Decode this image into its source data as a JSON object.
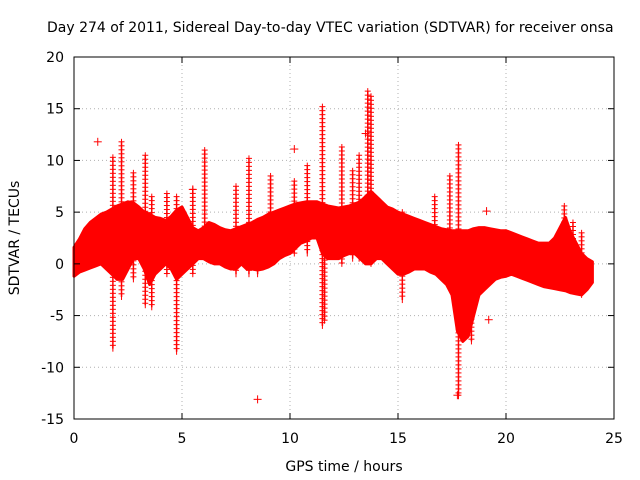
{
  "chart_data": {
    "type": "scatter",
    "title": "Day 274 of 2011, Sidereal Day-to-day VTEC variation (SDTVAR) for receiver onsa",
    "xlabel": "GPS time / hours",
    "ylabel": "SDTVAR / TECUs",
    "xlim": [
      0,
      25
    ],
    "ylim": [
      -15,
      20
    ],
    "xticks": [
      0,
      5,
      10,
      15,
      20,
      25
    ],
    "yticks": [
      -15,
      -10,
      -5,
      0,
      5,
      10,
      15,
      20
    ],
    "xtick_labels": [
      "0",
      "5",
      "10",
      "15",
      "20",
      "25"
    ],
    "ytick_labels": [
      "-15",
      "-10",
      "-5",
      "0",
      "5",
      "10",
      "15",
      "20"
    ],
    "grid": true,
    "marker": "+",
    "color": "#ff0000",
    "series": [
      {
        "name": "SDTVAR",
        "band": [
          [
            0.0,
            -1.2,
            1.6
          ],
          [
            0.25,
            -0.8,
            2.4
          ],
          [
            0.5,
            -0.6,
            3.4
          ],
          [
            0.75,
            -0.4,
            4.0
          ],
          [
            1.0,
            -0.2,
            4.4
          ],
          [
            1.25,
            0.0,
            4.8
          ],
          [
            1.5,
            -0.5,
            5.0
          ],
          [
            1.75,
            -1.0,
            5.3
          ],
          [
            2.0,
            -1.5,
            5.6
          ],
          [
            2.25,
            -1.5,
            5.8
          ],
          [
            2.5,
            -0.5,
            6.0
          ],
          [
            2.75,
            0.5,
            5.9
          ],
          [
            3.0,
            0.5,
            5.5
          ],
          [
            3.25,
            -0.5,
            5.0
          ],
          [
            3.5,
            -2.0,
            4.8
          ],
          [
            3.75,
            -1.0,
            4.5
          ],
          [
            4.0,
            -0.5,
            4.4
          ],
          [
            4.25,
            0.0,
            4.2
          ],
          [
            4.5,
            -0.5,
            4.6
          ],
          [
            4.75,
            -1.5,
            5.2
          ],
          [
            5.0,
            -1.0,
            5.5
          ],
          [
            5.25,
            -0.5,
            4.5
          ],
          [
            5.5,
            0.0,
            3.5
          ],
          [
            5.75,
            0.5,
            3.2
          ],
          [
            6.0,
            0.5,
            3.5
          ],
          [
            6.25,
            0.2,
            4.0
          ],
          [
            6.5,
            0.0,
            3.8
          ],
          [
            6.75,
            0.0,
            3.5
          ],
          [
            7.0,
            -0.3,
            3.3
          ],
          [
            7.25,
            -0.5,
            3.2
          ],
          [
            7.5,
            -0.5,
            3.4
          ],
          [
            7.75,
            0.0,
            3.6
          ],
          [
            8.0,
            -0.5,
            3.8
          ],
          [
            8.25,
            -0.5,
            4.0
          ],
          [
            8.5,
            -0.6,
            4.3
          ],
          [
            8.75,
            -0.5,
            4.5
          ],
          [
            9.0,
            -0.3,
            4.8
          ],
          [
            9.25,
            0.0,
            5.0
          ],
          [
            9.5,
            0.5,
            5.2
          ],
          [
            9.75,
            0.8,
            5.4
          ],
          [
            10.0,
            1.0,
            5.6
          ],
          [
            10.25,
            1.5,
            5.8
          ],
          [
            10.5,
            2.0,
            5.9
          ],
          [
            10.75,
            2.2,
            6.0
          ],
          [
            11.0,
            2.5,
            6.0
          ],
          [
            11.25,
            2.5,
            6.0
          ],
          [
            11.5,
            1.0,
            5.8
          ],
          [
            11.75,
            0.5,
            5.6
          ],
          [
            12.0,
            0.5,
            5.5
          ],
          [
            12.25,
            0.5,
            5.4
          ],
          [
            12.5,
            0.8,
            5.5
          ],
          [
            12.75,
            1.0,
            5.6
          ],
          [
            13.0,
            1.0,
            5.8
          ],
          [
            13.25,
            0.5,
            6.0
          ],
          [
            13.5,
            0.0,
            6.5
          ],
          [
            13.75,
            0.0,
            7.0
          ],
          [
            14.0,
            0.5,
            6.5
          ],
          [
            14.25,
            0.5,
            6.0
          ],
          [
            14.5,
            0.0,
            5.5
          ],
          [
            14.75,
            -0.5,
            5.3
          ],
          [
            15.0,
            -1.0,
            5.0
          ],
          [
            15.25,
            -1.0,
            4.8
          ],
          [
            15.5,
            -0.8,
            4.6
          ],
          [
            15.75,
            -0.5,
            4.4
          ],
          [
            16.0,
            -0.5,
            4.2
          ],
          [
            16.25,
            -0.5,
            4.0
          ],
          [
            16.5,
            -0.8,
            3.8
          ],
          [
            16.75,
            -1.0,
            3.6
          ],
          [
            17.0,
            -1.5,
            3.4
          ],
          [
            17.25,
            -2.0,
            3.3
          ],
          [
            17.5,
            -3.0,
            3.2
          ],
          [
            17.75,
            -6.5,
            3.2
          ],
          [
            18.0,
            -7.5,
            3.2
          ],
          [
            18.25,
            -7.0,
            3.2
          ],
          [
            18.5,
            -5.0,
            3.4
          ],
          [
            18.75,
            -3.0,
            3.5
          ],
          [
            19.0,
            -2.5,
            3.5
          ],
          [
            19.25,
            -2.0,
            3.4
          ],
          [
            19.5,
            -1.5,
            3.3
          ],
          [
            19.75,
            -1.3,
            3.2
          ],
          [
            20.0,
            -1.2,
            3.2
          ],
          [
            20.25,
            -1.0,
            3.0
          ],
          [
            20.5,
            -1.2,
            2.8
          ],
          [
            20.75,
            -1.4,
            2.6
          ],
          [
            21.0,
            -1.6,
            2.4
          ],
          [
            21.25,
            -1.8,
            2.2
          ],
          [
            21.5,
            -2.0,
            2.0
          ],
          [
            21.75,
            -2.2,
            2.0
          ],
          [
            22.0,
            -2.3,
            2.0
          ],
          [
            22.25,
            -2.4,
            2.5
          ],
          [
            22.5,
            -2.5,
            3.5
          ],
          [
            22.75,
            -2.6,
            4.5
          ],
          [
            23.0,
            -2.8,
            3.0
          ],
          [
            23.25,
            -2.9,
            2.0
          ],
          [
            23.5,
            -3.0,
            1.0
          ],
          [
            23.75,
            -2.5,
            0.5
          ],
          [
            24.0,
            -1.8,
            0.2
          ]
        ],
        "spikes": [
          [
            1.8,
            -8.2,
            10.3
          ],
          [
            2.2,
            -3.2,
            11.8
          ],
          [
            2.75,
            -1.5,
            8.8
          ],
          [
            3.3,
            -4.0,
            10.5
          ],
          [
            3.6,
            -4.2,
            6.5
          ],
          [
            4.3,
            -1.0,
            6.8
          ],
          [
            4.75,
            -8.5,
            6.5
          ],
          [
            5.5,
            -1.0,
            7.2
          ],
          [
            6.05,
            1.0,
            11.0
          ],
          [
            7.5,
            -1.0,
            7.5
          ],
          [
            8.1,
            -1.0,
            10.2
          ],
          [
            8.5,
            -1.0,
            4.0
          ],
          [
            9.1,
            0.0,
            8.5
          ],
          [
            10.2,
            1.0,
            8.0
          ],
          [
            10.8,
            1.0,
            9.5
          ],
          [
            11.5,
            -6.0,
            15.2
          ],
          [
            11.6,
            -5.5,
            5.0
          ],
          [
            12.4,
            0.0,
            11.3
          ],
          [
            12.9,
            0.5,
            9.0
          ],
          [
            13.2,
            0.5,
            10.5
          ],
          [
            13.6,
            0.5,
            16.7
          ],
          [
            13.75,
            0.0,
            16.2
          ],
          [
            15.2,
            -3.5,
            5.0
          ],
          [
            16.7,
            0.0,
            6.5
          ],
          [
            17.4,
            -1.0,
            8.5
          ],
          [
            17.8,
            -12.8,
            11.5
          ],
          [
            18.4,
            -7.5,
            2.0
          ],
          [
            22.7,
            -2.0,
            5.6
          ],
          [
            23.1,
            -2.5,
            4.0
          ],
          [
            23.5,
            -3.0,
            3.0
          ]
        ],
        "outliers": [
          [
            1.1,
            11.8
          ],
          [
            10.2,
            11.1
          ],
          [
            8.5,
            -13.1
          ],
          [
            19.1,
            5.1
          ],
          [
            19.2,
            -5.4
          ],
          [
            17.75,
            -12.7
          ],
          [
            5.5,
            7.2
          ],
          [
            13.5,
            12.6
          ]
        ]
      }
    ]
  }
}
